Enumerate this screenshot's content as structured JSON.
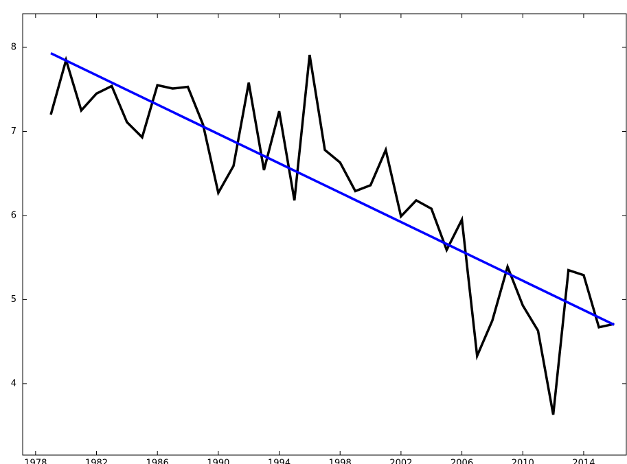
{
  "chart_data": {
    "type": "line",
    "series": [
      {
        "color": "#000000",
        "x": [
          1979,
          1980,
          1981,
          1982,
          1983,
          1984,
          1985,
          1986,
          1987,
          1988,
          1989,
          1990,
          1991,
          1992,
          1993,
          1994,
          1995,
          1996,
          1997,
          1998,
          1999,
          2000,
          2001,
          2002,
          2003,
          2004,
          2005,
          2006,
          2007,
          2008,
          2009,
          2010,
          2011,
          2012,
          2013,
          2014,
          2015,
          2016
        ],
        "values": [
          7.2,
          7.85,
          7.25,
          7.45,
          7.54,
          7.11,
          6.93,
          7.55,
          7.51,
          7.53,
          7.08,
          6.27,
          6.59,
          7.58,
          6.54,
          7.24,
          6.18,
          7.91,
          6.78,
          6.63,
          6.29,
          6.36,
          6.78,
          5.99,
          6.18,
          6.08,
          5.59,
          5.95,
          4.33,
          4.75,
          5.39,
          4.93,
          4.63,
          3.63,
          5.35,
          5.29,
          4.67,
          4.71
        ]
      },
      {
        "color": "#0000ff",
        "x": [
          1979,
          2016
        ],
        "values": [
          7.93,
          4.7
        ]
      }
    ],
    "xlim": [
      1977.15,
      2016.8
    ],
    "ylim": [
      3.15,
      8.4
    ],
    "xticks": [
      1978,
      1982,
      1986,
      1990,
      1994,
      1998,
      2002,
      2006,
      2010,
      2014
    ],
    "yticks": [
      4,
      5,
      6,
      7,
      8
    ]
  }
}
